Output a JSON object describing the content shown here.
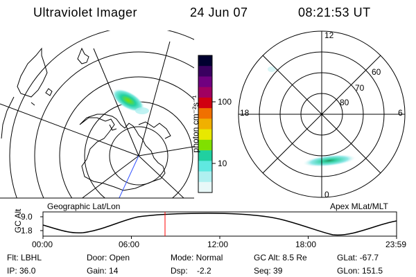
{
  "header": {
    "title": "Ultraviolet Imager",
    "date": "24 Jun 07",
    "time": "08:21:53 UT"
  },
  "colorbar": {
    "unit_label": "photon cm⁻²s⁻¹",
    "ticks": [
      "100",
      "10"
    ],
    "colors": [
      "#000030",
      "#3a0060",
      "#700080",
      "#a00060",
      "#d00010",
      "#f07000",
      "#f0b000",
      "#e8e800",
      "#80e000",
      "#20d0a0",
      "#60e8e0",
      "#b0f0f0",
      "#e8f8f8"
    ]
  },
  "left_panel": {
    "caption": "Geographic Lat/Lon"
  },
  "right_panel": {
    "caption": "Apex MLat/MLT",
    "mlt_labels": {
      "top": "12",
      "left": "18",
      "right": "6",
      "bottom": "0"
    },
    "lat_labels": [
      "60",
      "70",
      "80"
    ]
  },
  "altitude_plot": {
    "y_label": "GC Alt",
    "y_ticks": [
      "9.0",
      "1.8"
    ],
    "x_ticks": [
      "00:00",
      "06:00",
      "12:00",
      "18:00",
      "23:59"
    ],
    "current_time_color": "#ff0000"
  },
  "info": {
    "filter": "Flt: LBHL",
    "door": "Door: Open",
    "mode": "Mode: Normal",
    "gc_alt": "GC Alt: 8.5 Re",
    "glat": "GLat: -67.7",
    "ip": "IP: 36.0",
    "gain": "Gain: 14",
    "dsp": "Dsp:    -2.2",
    "seq": "Seq: 39",
    "glon": "GLon: 151.5"
  }
}
